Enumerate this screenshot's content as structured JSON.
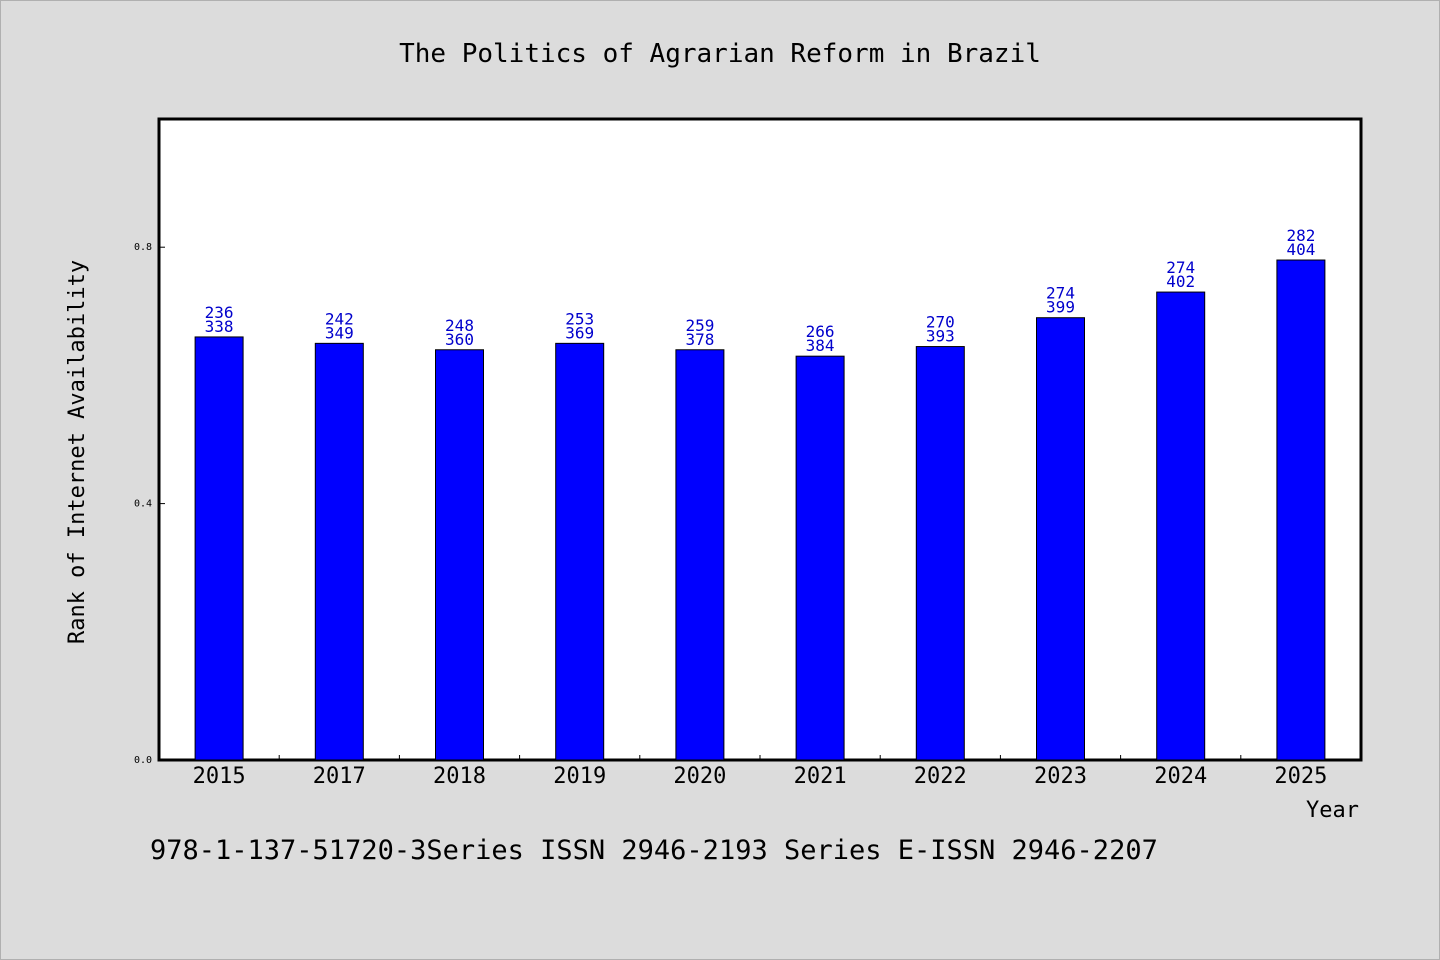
{
  "chart_data": {
    "type": "bar",
    "title": "The Politics of Agrarian Reform in Brazil",
    "xlabel": "Year",
    "ylabel": "Rank of Internet Availability",
    "categories": [
      "2015",
      "2017",
      "2018",
      "2019",
      "2020",
      "2021",
      "2022",
      "2023",
      "2024",
      "2025"
    ],
    "values": [
      0.66,
      0.65,
      0.64,
      0.65,
      0.64,
      0.63,
      0.645,
      0.69,
      0.73,
      0.78
    ],
    "bar_labels_top": [
      "236",
      "242",
      "248",
      "253",
      "259",
      "266",
      "270",
      "274",
      "274",
      "282"
    ],
    "bar_labels_bottom": [
      "338",
      "349",
      "360",
      "369",
      "378",
      "384",
      "393",
      "399",
      "402",
      "404"
    ],
    "ylim": [
      0,
      1.0
    ],
    "yticks": [
      0.0,
      0.4,
      0.8
    ],
    "ytick_labels": [
      "0.0",
      "0.4",
      "0.8"
    ],
    "bar_color": "#0000ff",
    "label_color": "#0000cc",
    "grid": false
  },
  "footer": {
    "text": "978-1-137-51720-3Series ISSN 2946-2193 Series E-ISSN 2946-2207"
  }
}
